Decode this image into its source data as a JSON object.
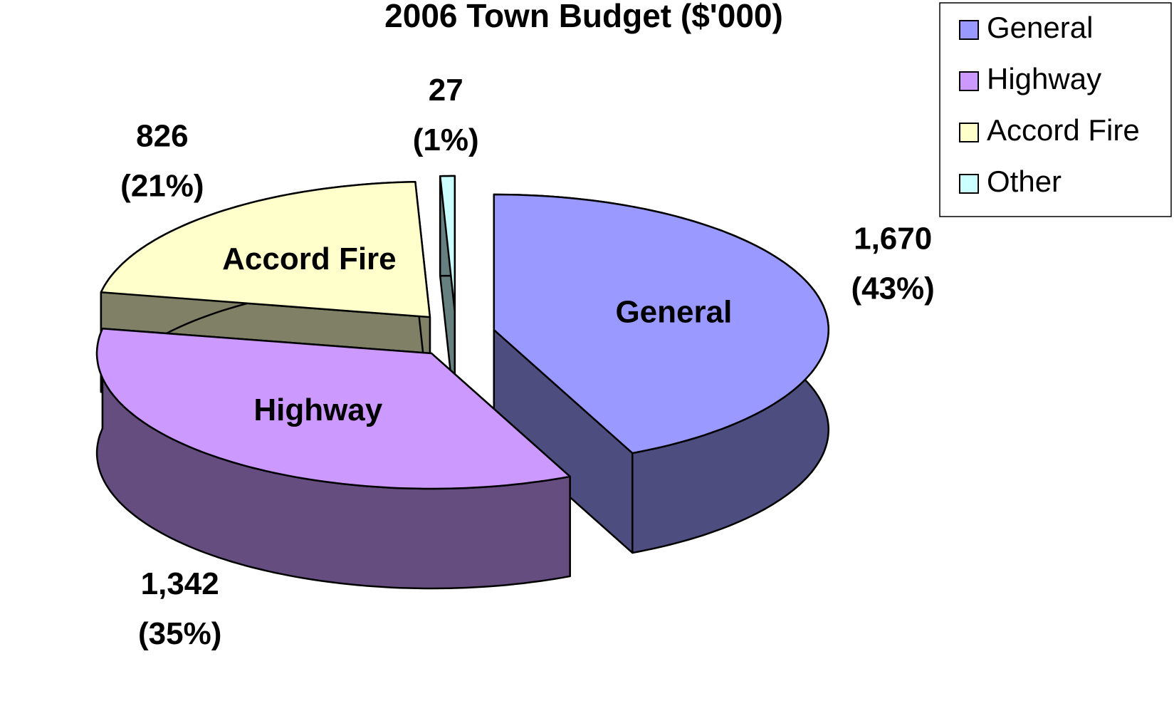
{
  "chart_data": {
    "type": "pie3d",
    "title": "2006 Town Budget ($'000)",
    "categories": [
      "General",
      "Highway",
      "Accord Fire",
      "Other"
    ],
    "values": [
      1670,
      1342,
      826,
      27
    ],
    "value_labels": [
      "1,670",
      "1,342",
      "826",
      "27"
    ],
    "percents": [
      43,
      35,
      21,
      1
    ],
    "percent_labels": [
      "(43%)",
      "(35%)",
      "(21%)",
      "(1%)"
    ],
    "colors": [
      "#9999ff",
      "#cc99ff",
      "#ffffcc",
      "#ccffff"
    ],
    "legend": "top-right"
  }
}
